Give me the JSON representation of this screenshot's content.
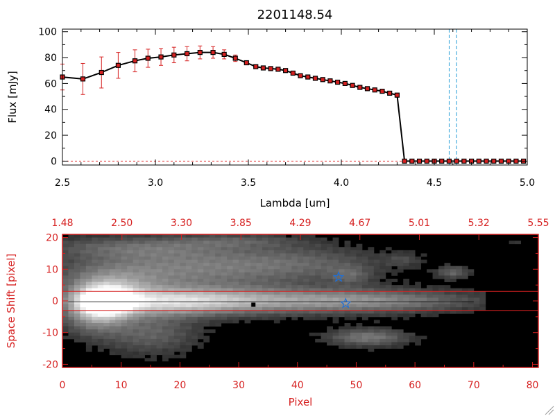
{
  "title": "2201148.54",
  "colors": {
    "spectrum_line": "#000000",
    "marker_fill": "#d62020",
    "error_bar": "#d62020",
    "ref_line": "#1f9bd6",
    "baseline": "#e03030",
    "image_axes": "#d62020",
    "aperture": "#d62020",
    "star_marker": "#1f6fd6"
  },
  "chart_data": [
    {
      "type": "line",
      "title": "2201148.54",
      "xlabel": "Lambda [um]",
      "ylabel": "Flux [mJy]",
      "xlim": [
        2.5,
        5.0
      ],
      "ylim": [
        -3,
        102
      ],
      "xticks": [
        "2.5",
        "3.0",
        "3.5",
        "4.0",
        "4.5",
        "5.0"
      ],
      "yticks": [
        "0",
        "20",
        "40",
        "60",
        "80",
        "100"
      ],
      "grid": false,
      "series": [
        {
          "x": [
            2.5,
            2.61,
            2.71,
            2.8,
            2.89,
            2.96,
            3.03,
            3.1,
            3.17,
            3.24,
            3.31,
            3.37,
            3.43,
            3.49,
            3.54,
            3.58,
            3.62,
            3.66,
            3.7,
            3.74,
            3.78,
            3.82,
            3.86,
            3.9,
            3.94,
            3.98,
            4.02,
            4.06,
            4.1,
            4.14,
            4.18,
            4.22,
            4.26,
            4.3,
            4.34,
            4.38,
            4.42,
            4.46,
            4.5,
            4.54,
            4.58,
            4.62,
            4.66,
            4.7,
            4.74,
            4.78,
            4.82,
            4.86,
            4.9,
            4.94,
            4.98
          ],
          "y": [
            65,
            63.5,
            68.5,
            74,
            77.5,
            79.5,
            80.5,
            82,
            83,
            84,
            84,
            82.5,
            79.5,
            76,
            73,
            72,
            71.5,
            71,
            70,
            68,
            66,
            65,
            64,
            63,
            62,
            61,
            60,
            58.5,
            57,
            56,
            55,
            54,
            52.5,
            51,
            0,
            0,
            0,
            0,
            0,
            0,
            0,
            0,
            0,
            0,
            0,
            0,
            0,
            0,
            0,
            0,
            0
          ],
          "yerr": [
            10,
            12,
            12,
            10,
            8.5,
            7,
            6.5,
            6,
            5.5,
            5,
            4.5,
            3.5,
            2.5,
            1.5,
            1,
            1,
            1,
            1,
            1,
            1,
            1,
            1,
            1,
            1,
            1,
            1,
            1,
            1,
            1,
            1,
            1,
            1,
            1,
            1,
            0.5,
            0,
            0,
            0,
            0,
            0,
            0,
            0,
            0,
            0,
            0,
            0,
            0,
            0,
            0,
            0,
            0
          ]
        }
      ],
      "reference_lines_x": [
        4.58,
        4.62
      ],
      "baseline_y": 0
    },
    {
      "type": "heatmap",
      "xlabel": "Pixel",
      "ylabel": "Space Shift [pixel]",
      "xlim": [
        0,
        81
      ],
      "ylim": [
        -21,
        21
      ],
      "xticks": [
        "0",
        "10",
        "20",
        "30",
        "40",
        "50",
        "60",
        "70",
        "80"
      ],
      "yticks": [
        "-20",
        "-10",
        "0",
        "10",
        "20"
      ],
      "top_axis_ticks": [
        "1.48",
        "2.50",
        "3.30",
        "3.85",
        "4.29",
        "4.67",
        "5.01",
        "5.32",
        "5.55"
      ],
      "aperture_y": [
        -3,
        3
      ],
      "markers": [
        {
          "kind": "star",
          "x": 47.0,
          "y": 7.5
        },
        {
          "kind": "star",
          "x": 48.2,
          "y": -0.8
        },
        {
          "kind": "square",
          "x": 32.5,
          "y": -1.2
        }
      ],
      "sources": [
        {
          "x": 7,
          "y": -0.3,
          "sx": 3.5,
          "sy": 3.5,
          "a": 1.0
        },
        {
          "x": 18,
          "y": -0.3,
          "sx": 10,
          "sy": 3,
          "a": 0.55
        },
        {
          "x": 35,
          "y": 0,
          "sx": 16,
          "sy": 3,
          "a": 0.4
        },
        {
          "x": 55,
          "y": 0,
          "sx": 13,
          "sy": 2.5,
          "a": 0.3
        },
        {
          "x": 20,
          "y": 10,
          "sx": 14,
          "sy": 5,
          "a": 0.4
        },
        {
          "x": 42,
          "y": 12,
          "sx": 10,
          "sy": 4,
          "a": 0.22
        },
        {
          "x": 12,
          "y": 17,
          "sx": 12,
          "sy": 2.5,
          "a": 0.25
        },
        {
          "x": 30,
          "y": 19,
          "sx": 8,
          "sy": 1.5,
          "a": 0.18
        },
        {
          "x": 8,
          "y": 5,
          "sx": 6,
          "sy": 4,
          "a": 0.3
        },
        {
          "x": 15,
          "y": -10,
          "sx": 6,
          "sy": 5,
          "a": 0.3
        },
        {
          "x": 5,
          "y": -6,
          "sx": 4,
          "sy": 4,
          "a": 0.3
        },
        {
          "x": 52,
          "y": -11.5,
          "sx": 5,
          "sy": 2,
          "a": 0.4
        },
        {
          "x": 66.5,
          "y": 9,
          "sx": 2,
          "sy": 1.5,
          "a": 0.3
        },
        {
          "x": 77,
          "y": 18.5,
          "sx": 1.5,
          "sy": 1,
          "a": 0.3
        },
        {
          "x": 58,
          "y": 13,
          "sx": 2,
          "sy": 1.5,
          "a": 0.15
        },
        {
          "x": 49,
          "y": 8,
          "sx": 2.5,
          "sy": 2,
          "a": 0.2
        }
      ]
    }
  ]
}
